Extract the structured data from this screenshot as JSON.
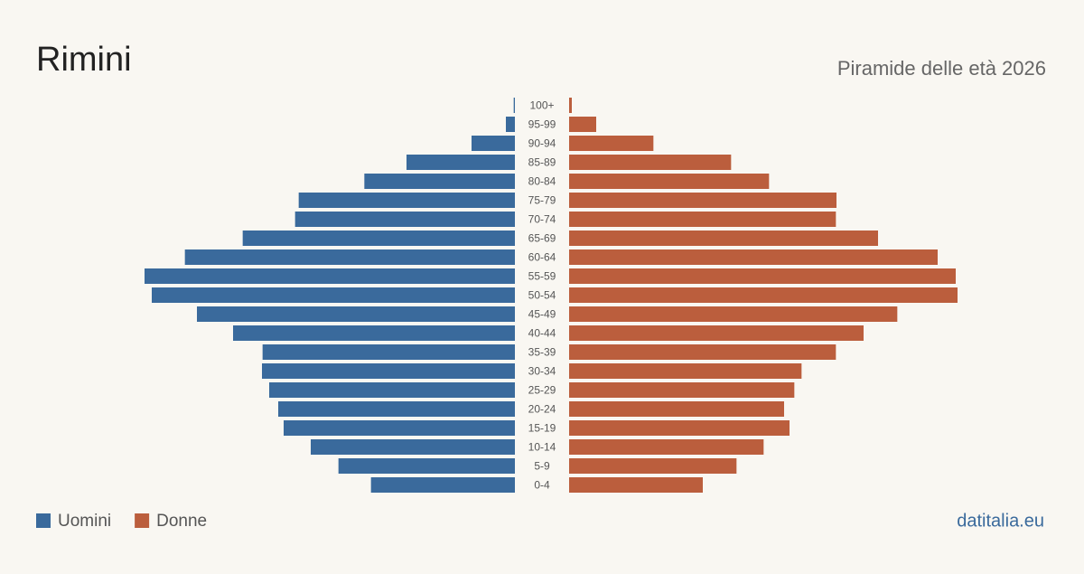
{
  "chart_data": {
    "type": "pyramid",
    "title": "Rimini",
    "subtitle": "Piramide delle età 2026",
    "categories": [
      "100+",
      "95-99",
      "90-94",
      "85-89",
      "80-84",
      "75-79",
      "70-74",
      "65-69",
      "60-64",
      "55-59",
      "50-54",
      "45-49",
      "40-44",
      "35-39",
      "30-34",
      "25-29",
      "20-24",
      "15-19",
      "10-14",
      "5-9",
      "0-4"
    ],
    "series": [
      {
        "name": "Uomini",
        "color": "#3a6a9c",
        "values": [
          20,
          150,
          720,
          1800,
          2500,
          3590,
          3650,
          4520,
          5480,
          6150,
          6030,
          5280,
          4680,
          4190,
          4200,
          4080,
          3930,
          3840,
          3390,
          2930,
          2390
        ]
      },
      {
        "name": "Donne",
        "color": "#bb5e3d",
        "values": [
          45,
          450,
          1400,
          2690,
          3320,
          4440,
          4430,
          5130,
          6120,
          6420,
          6450,
          5450,
          4890,
          4430,
          3860,
          3740,
          3570,
          3660,
          3230,
          2780,
          2220
        ]
      }
    ],
    "source": "datitalia.eu"
  }
}
